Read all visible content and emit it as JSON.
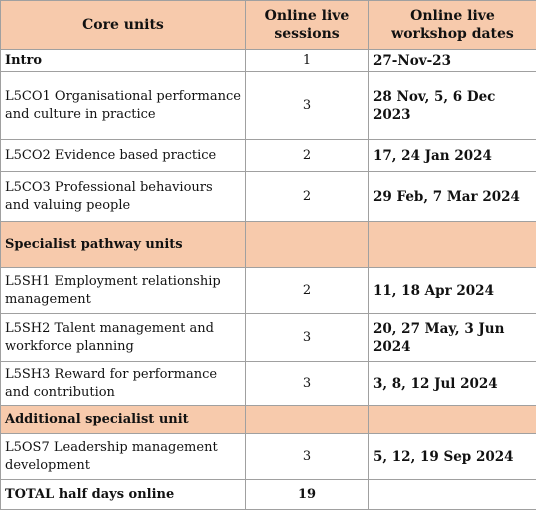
{
  "table": {
    "header": [
      "Core units",
      "Online live sessions",
      "Online live workshop dates"
    ],
    "rows": [
      [
        "Intro",
        1,
        "27-Nov-23"
      ],
      [
        "L5CO1 Organisational performance and culture in practice",
        3,
        "28 Nov, 5, 6 Dec 2023"
      ],
      [
        "L5CO2 Evidence based practice",
        2,
        "17, 24 Jan 2024"
      ],
      [
        "L5CO3 Professional behaviours and valuing people",
        2,
        "29 Feb, 7 Mar 2024"
      ],
      [
        "Specialist pathway units"
      ],
      [
        "L5SH1 Employment relationship management",
        2,
        "11, 18 Apr 2024"
      ],
      [
        "L5SH2 Talent management and workforce planning",
        3,
        "20, 27 May, 3 Jun 2024"
      ],
      [
        "L5SH3 Reward for performance and contribution",
        3,
        "3, 8, 12 Jul 2024"
      ],
      [
        "Additional specialist unit"
      ],
      [
        "L5OS7 Leadership management development",
        3,
        "5, 12, 19 Sep 2024"
      ],
      [
        "TOTAL half days online",
        19
      ]
    ]
  }
}
